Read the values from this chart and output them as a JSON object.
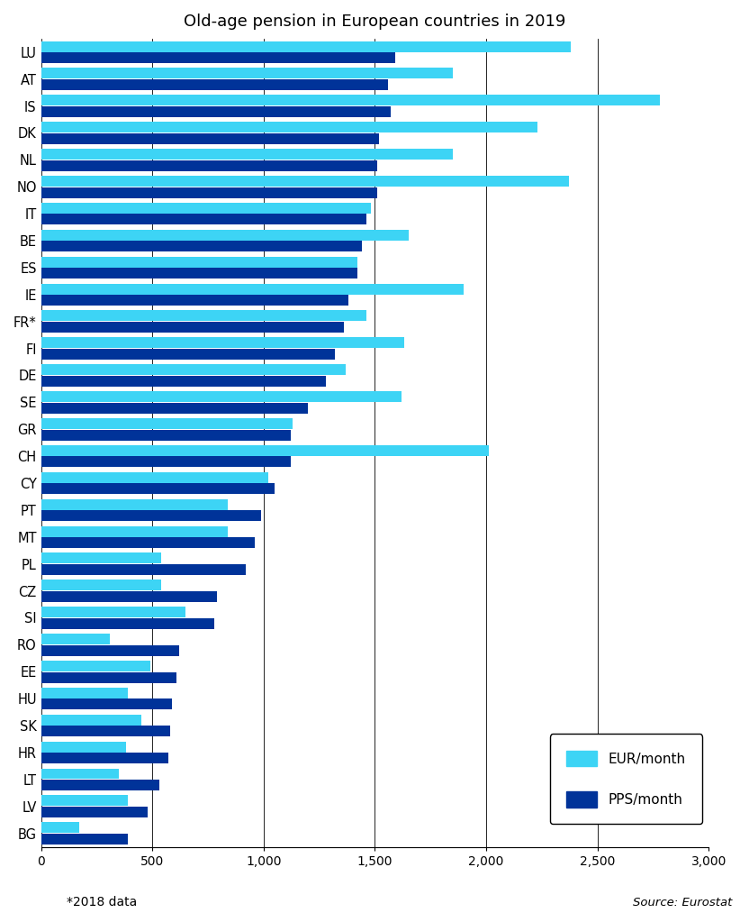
{
  "title": "Old-age pension in European countries in 2019",
  "countries": [
    "LU",
    "AT",
    "IS",
    "DK",
    "NL",
    "NO",
    "IT",
    "BE",
    "ES",
    "IE",
    "FR*",
    "FI",
    "DE",
    "SE",
    "GR",
    "CH",
    "CY",
    "PT",
    "MT",
    "PL",
    "CZ",
    "SI",
    "RO",
    "EE",
    "HU",
    "SK",
    "HR",
    "LT",
    "LV",
    "BG"
  ],
  "eur_month": [
    2380,
    1850,
    2780,
    2230,
    1850,
    2370,
    1480,
    1650,
    1420,
    1900,
    1460,
    1630,
    1370,
    1620,
    1130,
    2010,
    1020,
    840,
    840,
    540,
    540,
    650,
    310,
    490,
    390,
    450,
    380,
    350,
    390,
    170
  ],
  "pps_month": [
    1590,
    1560,
    1570,
    1520,
    1510,
    1510,
    1460,
    1440,
    1420,
    1380,
    1360,
    1320,
    1280,
    1200,
    1120,
    1120,
    1050,
    990,
    960,
    920,
    790,
    780,
    620,
    610,
    590,
    580,
    570,
    530,
    480,
    390
  ],
  "color_eur": "#3DD4F5",
  "color_pps": "#003399",
  "xlim": [
    0,
    3000
  ],
  "xticks": [
    0,
    500,
    1000,
    1500,
    2000,
    2500,
    3000
  ],
  "xticklabels": [
    "0",
    "500",
    "1,000",
    "1,500",
    "2,000",
    "2,500",
    "3,000"
  ],
  "footnote": "*2018 data",
  "source": "Source: Eurostat",
  "legend_eur": "EUR/month",
  "legend_pps": "PPS/month"
}
